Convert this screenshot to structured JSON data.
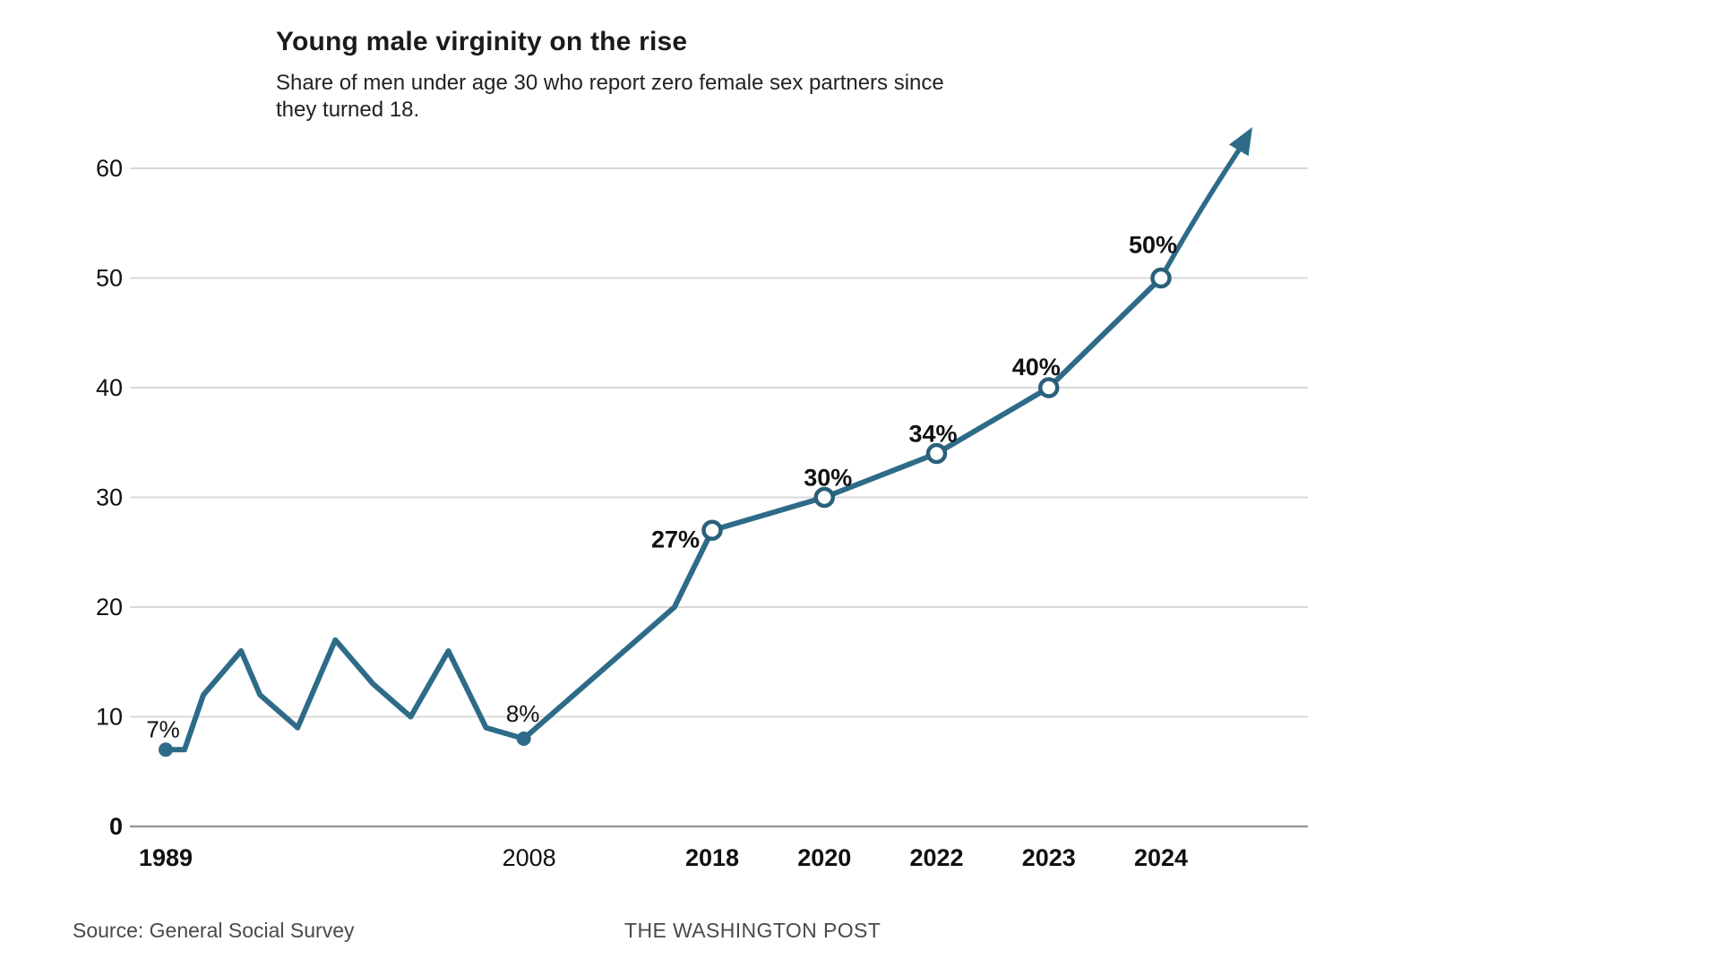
{
  "chart_data": {
    "type": "line",
    "title": "Young male virginity on the rise",
    "subtitle_lines": [
      "Share of men under age 30 who report zero female sex partners since",
      "they turned 18."
    ],
    "source": "Source: General Social Survey",
    "attribution": "THE WASHINGTON POST",
    "grid": true,
    "legend": "none",
    "ylim": [
      0,
      65
    ],
    "y_ticks": [
      {
        "value": 0,
        "label": "0",
        "bold": true
      },
      {
        "value": 10,
        "label": "10",
        "bold": false
      },
      {
        "value": 20,
        "label": "20",
        "bold": false
      },
      {
        "value": 30,
        "label": "30",
        "bold": false
      },
      {
        "value": 40,
        "label": "40",
        "bold": false
      },
      {
        "value": 50,
        "label": "50",
        "bold": false
      },
      {
        "value": 60,
        "label": "60",
        "bold": false
      }
    ],
    "x_ticks": [
      {
        "year": 1989,
        "label": "1989",
        "bold": true,
        "dx": 0
      },
      {
        "year": 2008,
        "label": "2008",
        "bold": false,
        "dx": 6
      },
      {
        "year": 2018,
        "label": "2018",
        "bold": true,
        "dx": 0
      },
      {
        "year": 2020,
        "label": "2020",
        "bold": true,
        "dx": 0
      },
      {
        "year": 2022,
        "label": "2022",
        "bold": true,
        "dx": 0
      },
      {
        "year": 2023,
        "label": "2023",
        "bold": true,
        "dx": 0
      },
      {
        "year": 2024,
        "label": "2024",
        "bold": true,
        "dx": 0
      }
    ],
    "points": [
      {
        "year": 1989,
        "value": 7,
        "marker": "filled",
        "label": "7%",
        "label_anchor": "middle",
        "label_offset": [
          -3,
          -14
        ],
        "label_bold": false
      },
      {
        "year": 1990,
        "value": 7,
        "marker": "none"
      },
      {
        "year": 1991,
        "value": 12,
        "marker": "none"
      },
      {
        "year": 1993,
        "value": 16,
        "marker": "none"
      },
      {
        "year": 1994,
        "value": 12,
        "marker": "none"
      },
      {
        "year": 1996,
        "value": 9,
        "marker": "none"
      },
      {
        "year": 1998,
        "value": 17,
        "marker": "none"
      },
      {
        "year": 2000,
        "value": 13,
        "marker": "none"
      },
      {
        "year": 2002,
        "value": 10,
        "marker": "none"
      },
      {
        "year": 2004,
        "value": 16,
        "marker": "none"
      },
      {
        "year": 2006,
        "value": 9,
        "marker": "none"
      },
      {
        "year": 2008,
        "value": 8,
        "marker": "filled",
        "label": "8%",
        "label_anchor": "middle",
        "label_offset": [
          -1,
          -19
        ],
        "label_bold": false
      },
      {
        "year": 2016,
        "value": 20,
        "marker": "none"
      },
      {
        "year": 2018,
        "value": 27,
        "marker": "open",
        "label": "27%",
        "label_anchor": "end",
        "label_offset": [
          -14,
          19
        ],
        "label_bold": true
      },
      {
        "year": 2020,
        "value": 30,
        "marker": "open",
        "label": "30%",
        "label_anchor": "middle",
        "label_offset": [
          4,
          -13
        ],
        "label_bold": true
      },
      {
        "year": 2022,
        "value": 34,
        "marker": "open",
        "label": "34%",
        "label_anchor": "middle",
        "label_offset": [
          -4,
          -13
        ],
        "label_bold": true
      },
      {
        "year": 2023,
        "value": 40,
        "marker": "open",
        "label": "40%",
        "label_anchor": "middle",
        "label_offset": [
          -14,
          -14
        ],
        "label_bold": true
      },
      {
        "year": 2024,
        "value": 50,
        "marker": "open",
        "label": "50%",
        "label_anchor": "middle",
        "label_offset": [
          -9,
          -28
        ],
        "label_bold": true
      }
    ],
    "trend_arrow": {
      "from_year": 2024,
      "from_value": 50,
      "tip_value": 64,
      "meaning": "continued rise beyond 2024"
    },
    "colors": {
      "line": "#2e6b89",
      "marker_filled": "#2e6b89",
      "marker_ring": "#2a607a",
      "grid": "#d8d8d8",
      "axis_baseline": "#999999",
      "tick_text": "#111111",
      "title_text": "#1b1b1b",
      "footer_text": "#4a4a4a"
    }
  }
}
